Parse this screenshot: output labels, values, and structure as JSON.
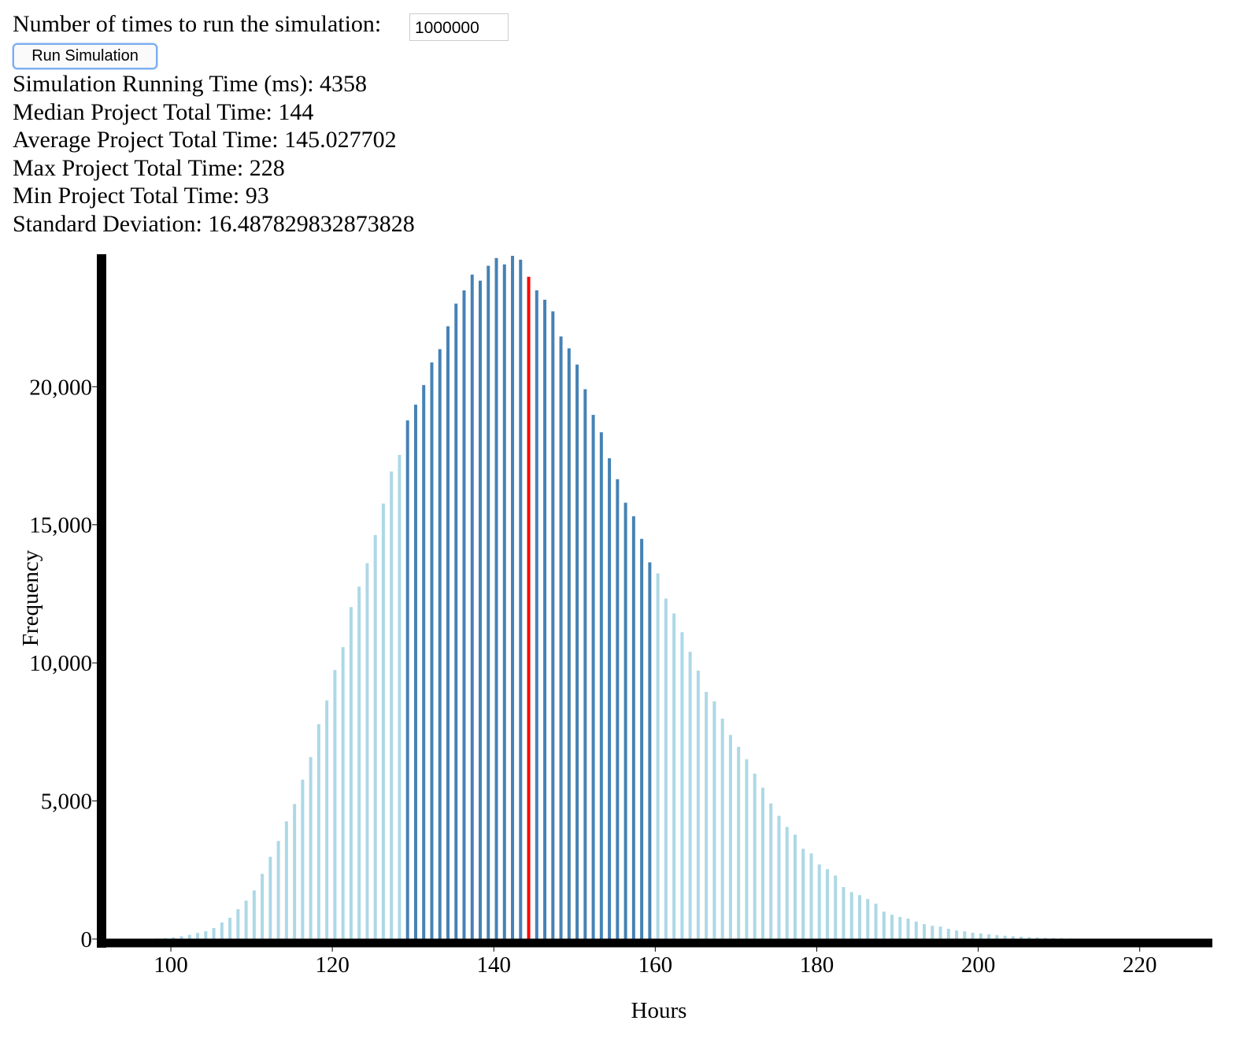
{
  "form": {
    "label": "Number of times to run the simulation:",
    "input_value": "1000000",
    "button": "Run Simulation"
  },
  "stats": [
    "Simulation Running Time (ms): 4358",
    "Median Project Total Time: 144",
    "Average Project Total Time: 145.027702",
    "Max Project Total Time: 228",
    "Min Project Total Time: 93",
    "Standard Deviation: 16.487829832873828"
  ],
  "chart_data": {
    "type": "bar",
    "xlabel": "Hours",
    "ylabel": "Frequency",
    "x": [
      93,
      94,
      95,
      96,
      97,
      98,
      99,
      100,
      101,
      102,
      103,
      104,
      105,
      106,
      107,
      108,
      109,
      110,
      111,
      112,
      113,
      114,
      115,
      116,
      117,
      118,
      119,
      120,
      121,
      122,
      123,
      124,
      125,
      126,
      127,
      128,
      129,
      130,
      131,
      132,
      133,
      134,
      135,
      136,
      137,
      138,
      139,
      140,
      141,
      142,
      143,
      144,
      145,
      146,
      147,
      148,
      149,
      150,
      151,
      152,
      153,
      154,
      155,
      156,
      157,
      158,
      159,
      160,
      161,
      162,
      163,
      164,
      165,
      166,
      167,
      168,
      169,
      170,
      171,
      172,
      173,
      174,
      175,
      176,
      177,
      178,
      179,
      180,
      181,
      182,
      183,
      184,
      185,
      186,
      187,
      188,
      189,
      190,
      191,
      192,
      193,
      194,
      195,
      196,
      197,
      198,
      199,
      200,
      201,
      202,
      203,
      204,
      205,
      206,
      207,
      208,
      209,
      210,
      211,
      212,
      213,
      214,
      215,
      216,
      217,
      218,
      219,
      220,
      221,
      222,
      223,
      224,
      225,
      226,
      227,
      228
    ],
    "values": [
      1,
      1,
      1,
      3,
      5,
      10,
      20,
      35,
      60,
      100,
      150,
      220,
      284,
      400,
      600,
      770,
      1080,
      1390,
      1760,
      2360,
      2980,
      3550,
      4260,
      4890,
      5770,
      6590,
      7780,
      8640,
      9740,
      10570,
      12020,
      12760,
      13610,
      14630,
      15770,
      16930,
      17530,
      18780,
      19350,
      20060,
      20880,
      21360,
      22190,
      23010,
      23490,
      24060,
      23840,
      24380,
      24660,
      24430,
      24740,
      24600,
      23980,
      23490,
      23150,
      22730,
      21820,
      21390,
      20800,
      19910,
      18980,
      18350,
      17410,
      16650,
      15800,
      15310,
      14490,
      13640,
      13240,
      12330,
      11790,
      11110,
      10400,
      9720,
      8950,
      8610,
      7980,
      7390,
      6960,
      6510,
      5990,
      5480,
      4910,
      4460,
      4060,
      3780,
      3270,
      3100,
      2700,
      2530,
      2300,
      1880,
      1700,
      1590,
      1450,
      1280,
      990,
      880,
      800,
      740,
      630,
      540,
      480,
      450,
      370,
      310,
      280,
      230,
      200,
      170,
      140,
      120,
      100,
      85,
      70,
      55,
      45,
      35,
      28,
      22,
      17,
      13,
      10,
      8,
      6,
      5,
      4,
      3,
      2,
      2,
      1,
      1,
      1,
      1,
      1,
      1
    ],
    "colors": [
      "lightblue",
      "lightblue",
      "lightblue",
      "lightblue",
      "lightblue",
      "lightblue",
      "lightblue",
      "lightblue",
      "lightblue",
      "lightblue",
      "lightblue",
      "lightblue",
      "lightblue",
      "lightblue",
      "lightblue",
      "lightblue",
      "lightblue",
      "lightblue",
      "lightblue",
      "lightblue",
      "lightblue",
      "lightblue",
      "lightblue",
      "lightblue",
      "lightblue",
      "lightblue",
      "lightblue",
      "lightblue",
      "lightblue",
      "lightblue",
      "lightblue",
      "lightblue",
      "lightblue",
      "lightblue",
      "lightblue",
      "lightblue",
      "lightblue",
      "steelblue",
      "steelblue",
      "steelblue",
      "steelblue",
      "steelblue",
      "steelblue",
      "steelblue",
      "steelblue",
      "steelblue",
      "steelblue",
      "steelblue",
      "steelblue",
      "steelblue",
      "steelblue",
      "steelblue",
      "red",
      "steelblue",
      "steelblue",
      "steelblue",
      "steelblue",
      "steelblue",
      "steelblue",
      "steelblue",
      "steelblue",
      "steelblue",
      "steelblue",
      "steelblue",
      "steelblue",
      "steelblue",
      "steelblue",
      "steelblue",
      "lightblue",
      "lightblue",
      "lightblue",
      "lightblue",
      "lightblue",
      "lightblue",
      "lightblue",
      "lightblue",
      "lightblue",
      "lightblue",
      "lightblue",
      "lightblue",
      "lightblue",
      "lightblue",
      "lightblue",
      "lightblue",
      "lightblue",
      "lightblue",
      "lightblue",
      "lightblue",
      "lightblue",
      "lightblue",
      "lightblue",
      "lightblue",
      "lightblue",
      "lightblue",
      "lightblue",
      "lightblue",
      "lightblue",
      "lightblue",
      "lightblue",
      "lightblue",
      "lightblue",
      "lightblue",
      "lightblue",
      "lightblue",
      "lightblue",
      "lightblue",
      "lightblue",
      "lightblue",
      "lightblue",
      "lightblue",
      "lightblue",
      "lightblue",
      "lightblue",
      "lightblue",
      "lightblue",
      "lightblue",
      "lightblue",
      "lightblue",
      "lightblue",
      "lightblue",
      "lightblue",
      "lightblue",
      "lightblue",
      "lightblue",
      "lightblue",
      "lightblue",
      "lightblue",
      "lightblue",
      "lightblue",
      "lightblue",
      "lightblue",
      "lightblue",
      "lightblue",
      "lightblue",
      "lightblue",
      "lightblue"
    ],
    "xlim": [
      92,
      229
    ],
    "xticks": [
      100,
      120,
      140,
      160,
      180,
      200,
      220
    ],
    "ylim": [
      0,
      24740
    ],
    "yticks": [
      0,
      {
        "value": 5000,
        "label": "5,000"
      },
      {
        "value": 10000,
        "label": "10,000"
      },
      {
        "value": 15000,
        "label": "15,000"
      },
      {
        "value": 20000,
        "label": "20,000"
      }
    ]
  }
}
